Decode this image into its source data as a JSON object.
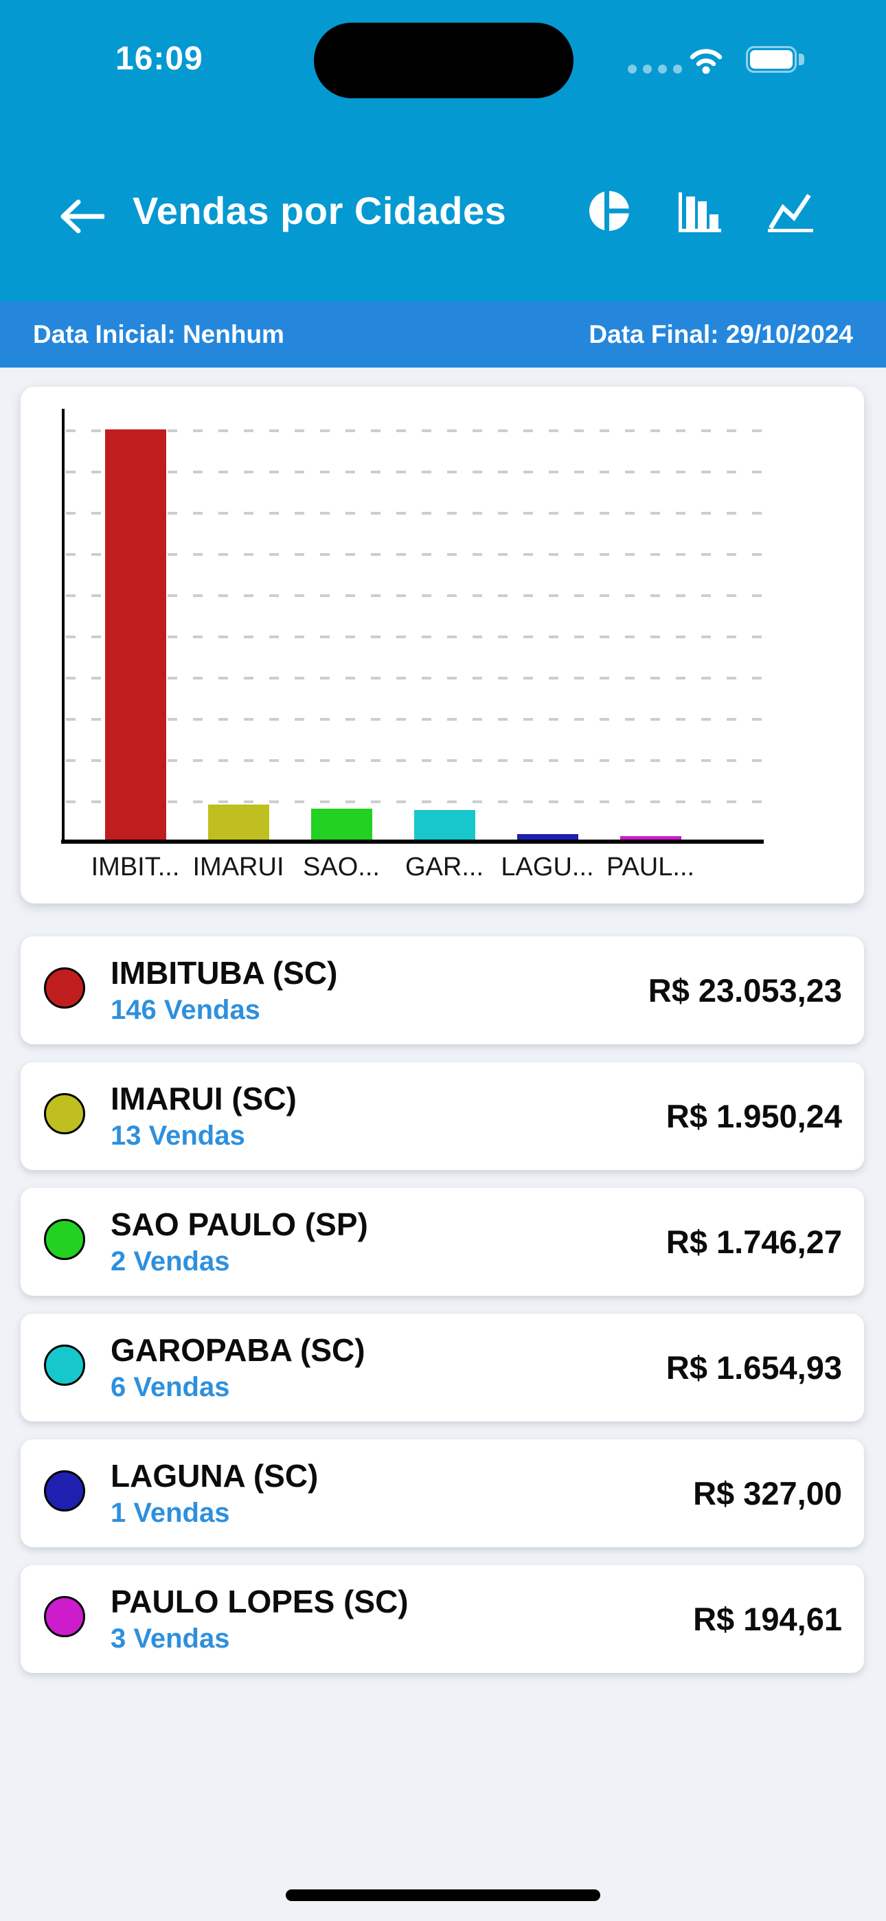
{
  "status_bar": {
    "time": "16:09"
  },
  "header": {
    "title": "Vendas por Cidades",
    "icons": [
      "back-arrow",
      "pie-chart",
      "bar-chart",
      "line-chart"
    ]
  },
  "date_bar": {
    "initial": "Data Inicial: Nenhum",
    "final": "Data Final: 29/10/2024"
  },
  "chart_data": {
    "type": "bar",
    "categories": [
      "IMBIT...",
      "IMARUI",
      "SAO...",
      "GAR...",
      "LAGU...",
      "PAUL..."
    ],
    "values": [
      23053.23,
      1950.24,
      1746.27,
      1654.93,
      327.0,
      194.61
    ],
    "colors": [
      "#c01e1e",
      "#bfbf20",
      "#22d122",
      "#16c8cc",
      "#2020b0",
      "#cc1ccc"
    ],
    "title": "",
    "xlabel": "",
    "ylabel": "",
    "ylim": [
      0,
      23053.23
    ],
    "grid": true,
    "gridline_count": 10,
    "legend": "none"
  },
  "cities": [
    {
      "name": "IMBITUBA (SC)",
      "sales": "146 Vendas",
      "amount": "R$ 23.053,23",
      "color": "#c01e1e"
    },
    {
      "name": "IMARUI (SC)",
      "sales": "13 Vendas",
      "amount": "R$ 1.950,24",
      "color": "#bfbf20"
    },
    {
      "name": "SAO PAULO (SP)",
      "sales": "2 Vendas",
      "amount": "R$ 1.746,27",
      "color": "#22d122"
    },
    {
      "name": "GAROPABA (SC)",
      "sales": "6 Vendas",
      "amount": "R$ 1.654,93",
      "color": "#16c8cc"
    },
    {
      "name": "LAGUNA (SC)",
      "sales": "1 Vendas",
      "amount": "R$ 327,00",
      "color": "#2020b0"
    },
    {
      "name": "PAULO LOPES (SC)",
      "sales": "3 Vendas",
      "amount": "R$ 194,61",
      "color": "#cc1ccc"
    }
  ],
  "colors": {
    "header_bg": "#0599d2",
    "date_bar_bg": "#2487dc",
    "page_bg": "#eff2f6",
    "link_blue": "#2e90dd",
    "bar_red": "#c01e1e",
    "text": "#0c0c0c"
  }
}
